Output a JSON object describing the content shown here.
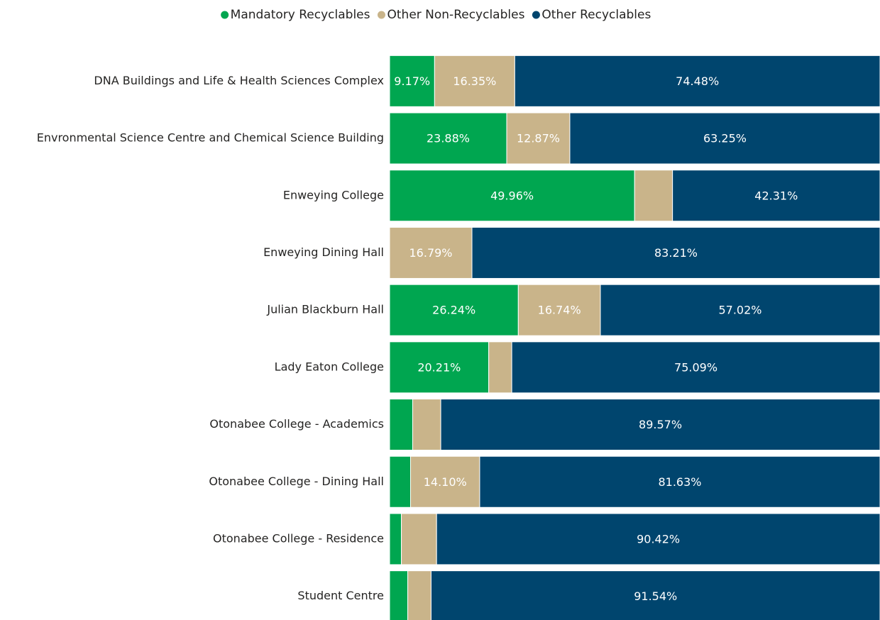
{
  "chart_data": {
    "type": "stacked_bar_horizontal",
    "categories": [
      "DNA Buildings and Life & Health Sciences Complex",
      "Envronmental Science Centre and Chemical Science Building",
      "Enweying College",
      "Enweying Dining Hall",
      "Julian Blackburn Hall",
      "Lady Eaton College",
      "Otonabee College - Academics",
      "Otonabee College - Dining Hall",
      "Otonabee College - Residence",
      "Student Centre"
    ],
    "series": [
      {
        "name": "Mandatory Recyclables",
        "color": "#00a650",
        "values": [
          9.17,
          23.88,
          49.96,
          0,
          26.24,
          20.21,
          4.7,
          4.27,
          2.4,
          3.7
        ],
        "value_labels": [
          "9.17%",
          "23.88%",
          "49.96%",
          null,
          "26.24%",
          "20.21%",
          null,
          null,
          null,
          null
        ]
      },
      {
        "name": "Other Non-Recyclables",
        "color": "#c9b48a",
        "values": [
          16.35,
          12.87,
          7.73,
          16.79,
          16.74,
          4.7,
          5.73,
          14.1,
          7.18,
          4.76
        ],
        "value_labels": [
          "16.35%",
          "12.87%",
          null,
          "16.79%",
          "16.74%",
          null,
          null,
          "14.10%",
          null,
          null
        ]
      },
      {
        "name": "Other Recyclables",
        "color": "#00456e",
        "values": [
          74.48,
          63.25,
          42.31,
          83.21,
          57.02,
          75.09,
          89.57,
          81.63,
          90.42,
          91.54
        ],
        "value_labels": [
          "74.48%",
          "63.25%",
          "42.31%",
          "83.21%",
          "57.02%",
          "75.09%",
          "89.57%",
          "81.63%",
          "90.42%",
          "91.54%"
        ]
      }
    ],
    "xlim": [
      0,
      100
    ],
    "legend": "top"
  }
}
